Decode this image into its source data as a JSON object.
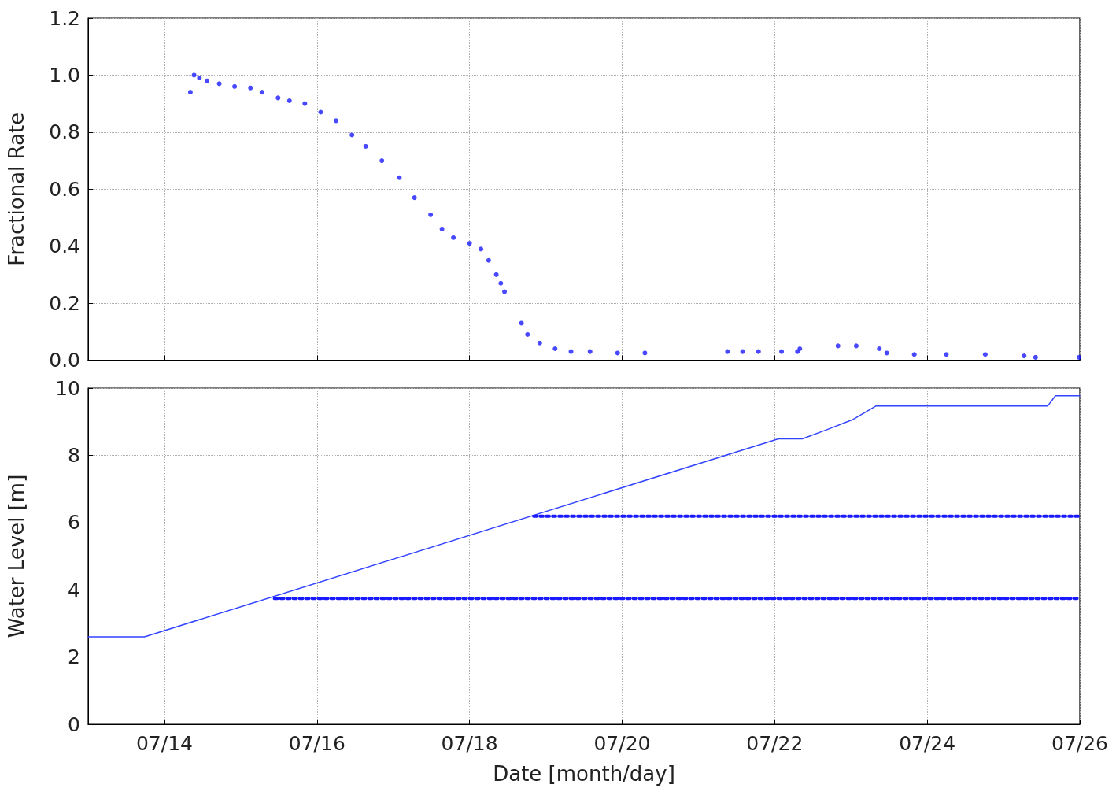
{
  "chart_data": [
    {
      "type": "scatter",
      "ylabel": "Fractional Rate",
      "color": "#1a1aff",
      "marker": "circle",
      "grid": true,
      "tick_labels": "y",
      "x": [
        "--07-14T08:10",
        "--07-14T09:20",
        "--07-14T11:00",
        "--07-14T13:25",
        "--07-14T17:15",
        "--07-14T22:05",
        "--07-15T03:05",
        "--07-15T06:40",
        "--07-15T11:45",
        "--07-15T15:20",
        "--07-15T20:10",
        "--07-16T01:10",
        "--07-16T06:00",
        "--07-16T11:00",
        "--07-16T15:20",
        "--07-16T20:25",
        "--07-17T01:55",
        "--07-17T06:40",
        "--07-17T11:45",
        "--07-17T15:20",
        "--07-17T18:55",
        "--07-18T00:00",
        "--07-18T03:35",
        "--07-18T06:00",
        "--07-18T08:25",
        "--07-18T09:50",
        "--07-18T11:00",
        "--07-18T16:20",
        "--07-18T18:15",
        "--07-18T22:05",
        "--07-19T02:55",
        "--07-19T07:55",
        "--07-19T13:55",
        "--07-19T22:35",
        "--07-20T07:10",
        "--07-21T09:10",
        "--07-21T13:55",
        "--07-21T18:55",
        "--07-22T02:10",
        "--07-22T07:10",
        "--07-22T07:55",
        "--07-22T19:55",
        "--07-23T01:40",
        "--07-23T08:55",
        "--07-23T11:15",
        "--07-23T19:55",
        "--07-24T06:00",
        "--07-24T18:15",
        "--07-25T06:30",
        "--07-25T10:05",
        "--07-25T23:45"
      ],
      "values": [
        0.94,
        1.0,
        0.99,
        0.98,
        0.97,
        0.96,
        0.955,
        0.94,
        0.92,
        0.91,
        0.9,
        0.87,
        0.84,
        0.79,
        0.75,
        0.7,
        0.64,
        0.57,
        0.51,
        0.46,
        0.43,
        0.41,
        0.39,
        0.35,
        0.3,
        0.27,
        0.24,
        0.13,
        0.09,
        0.06,
        0.04,
        0.03,
        0.03,
        0.025,
        0.025,
        0.03,
        0.03,
        0.03,
        0.03,
        0.03,
        0.04,
        0.05,
        0.05,
        0.04,
        0.025,
        0.02,
        0.02,
        0.02,
        0.015,
        0.01,
        0.01
      ],
      "xlim": [
        "--07-13",
        "--07-26"
      ],
      "xticks": [
        {
          "value": "--07-14",
          "label": "07/14"
        },
        {
          "value": "--07-16",
          "label": "07/16"
        },
        {
          "value": "--07-18",
          "label": "07/18"
        },
        {
          "value": "--07-20",
          "label": "07/20"
        },
        {
          "value": "--07-22",
          "label": "07/22"
        },
        {
          "value": "--07-24",
          "label": "07/24"
        },
        {
          "value": "--07-26",
          "label": "07/26"
        }
      ],
      "ylim": [
        0,
        1.2
      ],
      "yticks": [
        {
          "value": 0,
          "label": "0.0"
        },
        {
          "value": 0.2,
          "label": "0.2"
        },
        {
          "value": 0.4,
          "label": "0.4"
        },
        {
          "value": 0.6,
          "label": "0.6"
        },
        {
          "value": 0.8,
          "label": "0.8"
        },
        {
          "value": 1,
          "label": "1.0"
        },
        {
          "value": 1.2,
          "label": "1.2"
        }
      ]
    },
    {
      "type": "line",
      "xlabel": "Date [month/day]",
      "ylabel": "Water Level [m]",
      "grid": true,
      "marker": "none",
      "series": [
        {
          "color": "#3344ff",
          "line_style": "solid",
          "x": [
            "--07-13",
            "--07-13T17:45",
            "--07-22T01:10",
            "--07-22T08:40",
            "--07-22T16:05",
            "--07-23T00:45",
            "--07-23T07:55",
            "--07-25T13:55",
            "--07-25T16:20",
            "--07-26"
          ],
          "values": [
            2.6,
            2.6,
            8.49,
            8.49,
            8.75,
            9.07,
            9.47,
            9.47,
            9.77,
            9.77
          ]
        },
        {
          "color": "#1a1aff",
          "line_style": "dotted",
          "x": [
            "--07-15T10:35",
            "--07-26"
          ],
          "values": [
            3.74,
            3.74
          ]
        },
        {
          "color": "#1a1aff",
          "line_style": "dotted",
          "x": [
            "--07-18T20:10",
            "--07-26"
          ],
          "values": [
            6.19,
            6.19
          ]
        }
      ],
      "xlim": [
        "--07-13",
        "--07-26"
      ],
      "xticks": [
        {
          "value": "--07-14",
          "label": "07/14"
        },
        {
          "value": "--07-16",
          "label": "07/16"
        },
        {
          "value": "--07-18",
          "label": "07/18"
        },
        {
          "value": "--07-20",
          "label": "07/20"
        },
        {
          "value": "--07-22",
          "label": "07/22"
        },
        {
          "value": "--07-24",
          "label": "07/24"
        },
        {
          "value": "--07-26",
          "label": "07/26"
        }
      ],
      "ylim": [
        0,
        10
      ],
      "yticks": [
        0,
        2,
        4,
        6,
        8,
        10
      ]
    }
  ]
}
